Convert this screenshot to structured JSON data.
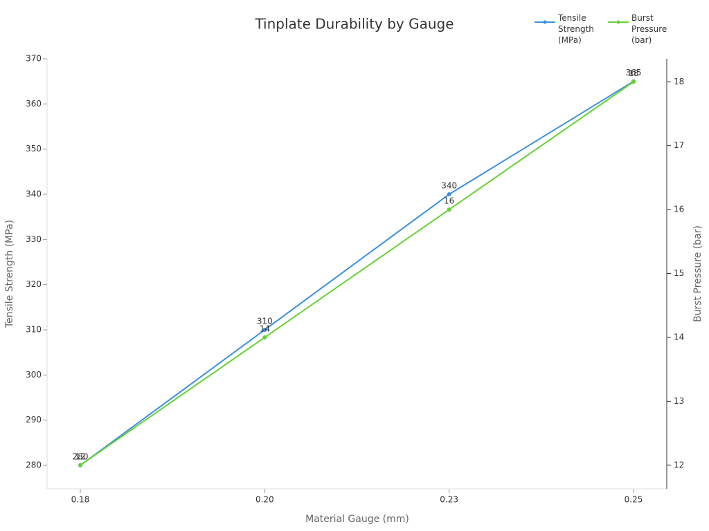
{
  "chart_data": {
    "type": "line",
    "title": "Tinplate Durability by Gauge",
    "x_label": "Material Gauge (mm)",
    "y_label": "Tensile Strength (MPa)",
    "y2_label": "Burst Pressure (bar)",
    "categories": [
      "0.18",
      "0.20",
      "0.23",
      "0.25"
    ],
    "series": [
      {
        "name": "Tensile Strength (MPa)",
        "color": "#3b8fdd",
        "values": [
          280,
          310,
          340,
          365
        ]
      },
      {
        "name": "Burst Pressure (bar)",
        "color": "#66d133",
        "values": [
          12,
          14,
          16,
          18
        ],
        "axis": "y2"
      }
    ],
    "ylim": [
      274.8,
      370
    ],
    "yticks": [
      280,
      290,
      300,
      310,
      320,
      330,
      340,
      350,
      360,
      370
    ],
    "y2lim": [
      11.63,
      18.36
    ],
    "y2ticks": [
      12,
      13,
      14,
      15,
      16,
      17,
      18
    ],
    "grid": false,
    "legend": "top-right"
  }
}
